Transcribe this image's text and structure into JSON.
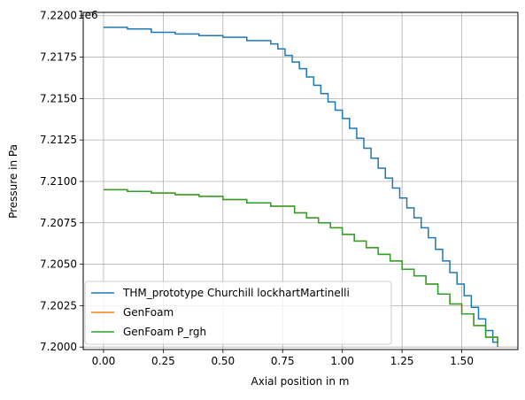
{
  "chart_data": {
    "type": "line",
    "title": "",
    "xlabel": "Axial position in m",
    "ylabel": "Pressure in Pa",
    "y_offset_text": "1e6",
    "xlim": [
      -0.085,
      1.735
    ],
    "ylim": [
      7.19985,
      7.2202
    ],
    "x_ticks": [
      0.0,
      0.25,
      0.5,
      0.75,
      1.0,
      1.25,
      1.5
    ],
    "x_tick_labels": [
      "0.00",
      "0.25",
      "0.50",
      "0.75",
      "1.00",
      "1.25",
      "1.50"
    ],
    "y_ticks": [
      7.2,
      7.2025,
      7.205,
      7.2075,
      7.21,
      7.2125,
      7.215,
      7.2175,
      7.22
    ],
    "y_tick_labels": [
      "7.2000",
      "7.2025",
      "7.2050",
      "7.2075",
      "7.2100",
      "7.2125",
      "7.2150",
      "7.2175",
      "7.2200"
    ],
    "grid": true,
    "legend_position": "lower-left",
    "step": true,
    "series": [
      {
        "name": "THM_prototype Churchill lockhartMartinelli",
        "color": "#1f77b4",
        "x": [
          0.0,
          0.1,
          0.2,
          0.3,
          0.4,
          0.5,
          0.6,
          0.7,
          0.73,
          0.76,
          0.79,
          0.82,
          0.85,
          0.88,
          0.91,
          0.94,
          0.97,
          1.0,
          1.03,
          1.06,
          1.09,
          1.12,
          1.15,
          1.18,
          1.21,
          1.24,
          1.27,
          1.3,
          1.33,
          1.36,
          1.39,
          1.42,
          1.45,
          1.48,
          1.51,
          1.54,
          1.57,
          1.6,
          1.63,
          1.65
        ],
        "y": [
          7.2193,
          7.2192,
          7.219,
          7.2189,
          7.2188,
          7.2187,
          7.2185,
          7.2183,
          7.218,
          7.2176,
          7.2172,
          7.2168,
          7.2163,
          7.2158,
          7.2153,
          7.2148,
          7.2143,
          7.2138,
          7.2132,
          7.2126,
          7.212,
          7.2114,
          7.2108,
          7.2102,
          7.2096,
          7.209,
          7.2084,
          7.2078,
          7.2072,
          7.2066,
          7.2059,
          7.2052,
          7.2045,
          7.2038,
          7.2031,
          7.2024,
          7.2017,
          7.201,
          7.2003,
          7.2
        ]
      },
      {
        "name": "GenFoam",
        "color": "#ff7f0e",
        "x": [
          0.0,
          0.1,
          0.2,
          0.3,
          0.4,
          0.5,
          0.6,
          0.7,
          0.8,
          0.85,
          0.9,
          0.95,
          1.0,
          1.05,
          1.1,
          1.15,
          1.2,
          1.25,
          1.3,
          1.35,
          1.4,
          1.45,
          1.5,
          1.55,
          1.6,
          1.65
        ],
        "y": [
          7.2095,
          7.2094,
          7.2093,
          7.2092,
          7.2091,
          7.2089,
          7.2087,
          7.2085,
          7.2081,
          7.2078,
          7.2075,
          7.2072,
          7.2068,
          7.2064,
          7.206,
          7.2056,
          7.2052,
          7.2047,
          7.2043,
          7.2038,
          7.2032,
          7.2026,
          7.202,
          7.2013,
          7.2006,
          7.2001
        ]
      },
      {
        "name": "GenFoam P_rgh",
        "color": "#2ca02c",
        "x": [
          0.0,
          0.1,
          0.2,
          0.3,
          0.4,
          0.5,
          0.6,
          0.7,
          0.8,
          0.85,
          0.9,
          0.95,
          1.0,
          1.05,
          1.1,
          1.15,
          1.2,
          1.25,
          1.3,
          1.35,
          1.4,
          1.45,
          1.5,
          1.55,
          1.6,
          1.65
        ],
        "y": [
          7.2095,
          7.2094,
          7.2093,
          7.2092,
          7.2091,
          7.2089,
          7.2087,
          7.2085,
          7.2081,
          7.2078,
          7.2075,
          7.2072,
          7.2068,
          7.2064,
          7.206,
          7.2056,
          7.2052,
          7.2047,
          7.2043,
          7.2038,
          7.2032,
          7.2026,
          7.202,
          7.2013,
          7.2006,
          7.2002
        ]
      }
    ]
  }
}
